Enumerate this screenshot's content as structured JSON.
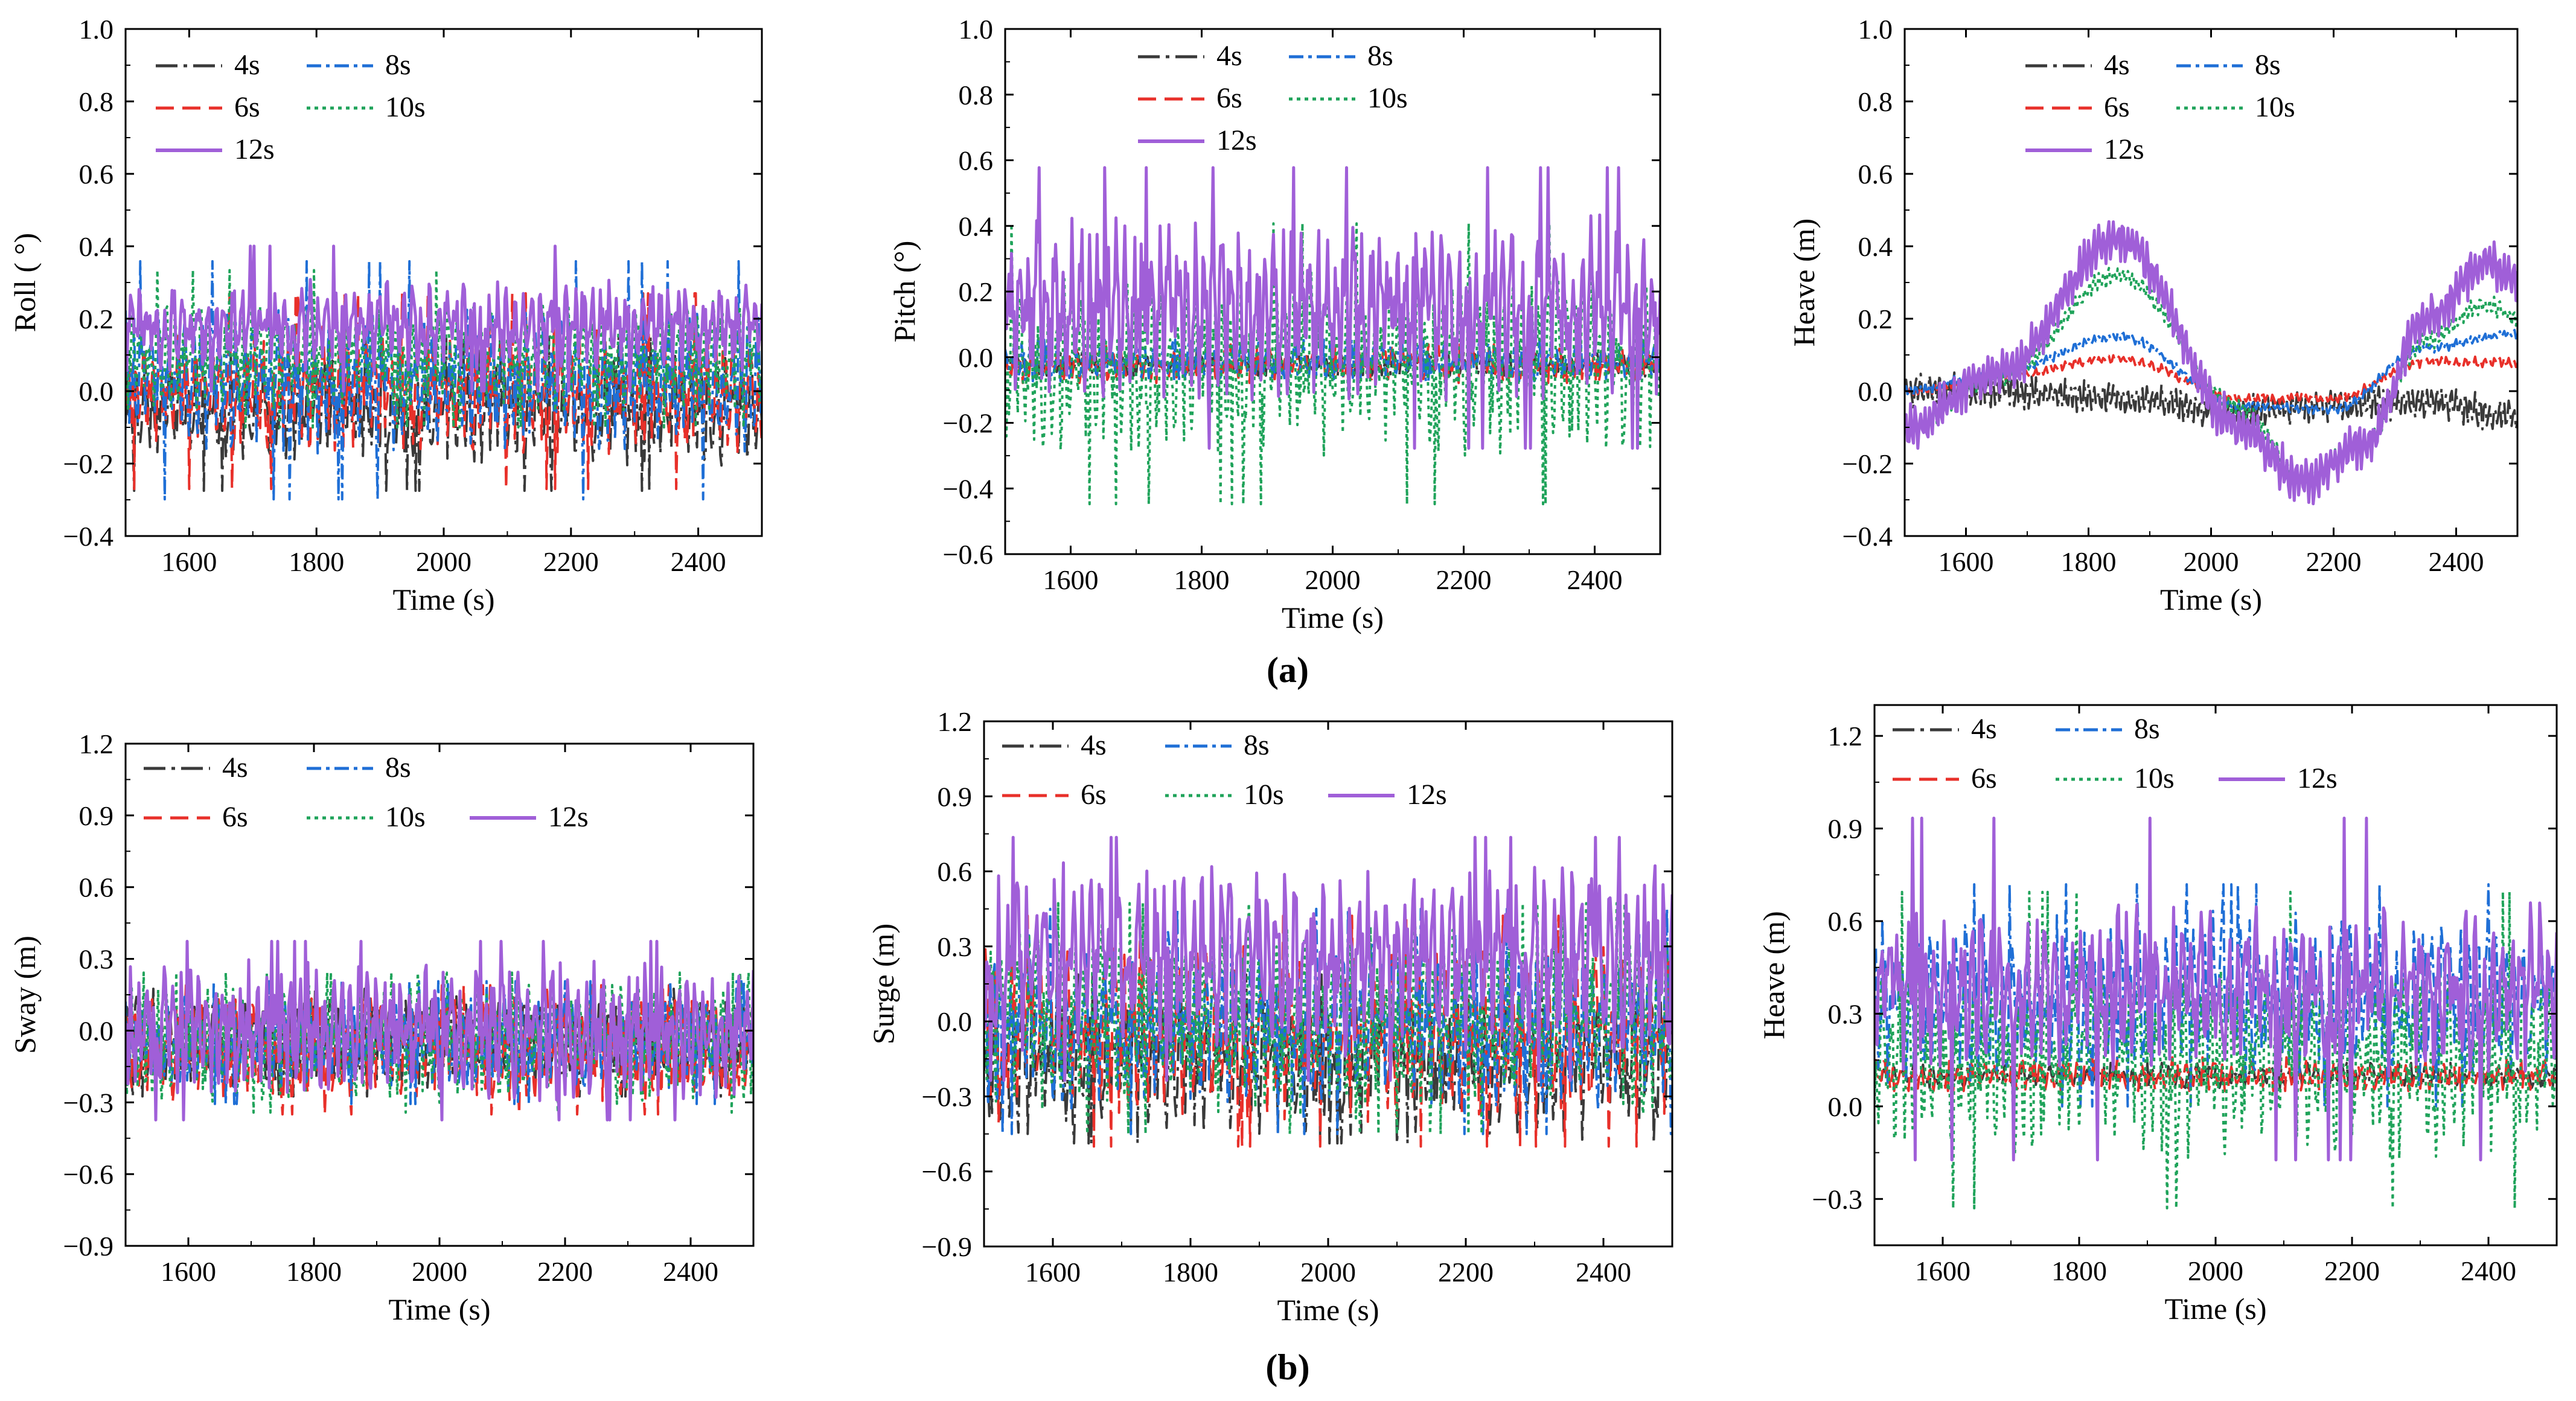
{
  "figure": {
    "caption_a": "(a)",
    "caption_b": "(b)"
  },
  "series_style": {
    "4s": {
      "label": "4s",
      "color": "#3a3a3a"
    },
    "6s": {
      "label": "6s",
      "color": "#e8302a"
    },
    "8s": {
      "label": "8s",
      "color": "#1f6fd6"
    },
    "10s": {
      "label": "10s",
      "color": "#1fa35a"
    },
    "12s": {
      "label": "12s",
      "color": "#a05fd8"
    }
  },
  "chart_data": [
    {
      "id": "a1",
      "type": "line",
      "title": "",
      "xlabel": "Time (s)",
      "ylabel": "Roll ( °)",
      "xlim": [
        1500,
        2500
      ],
      "ylim": [
        -0.4,
        1.0
      ],
      "xticks": [
        "1600",
        "1800",
        "2000",
        "2200",
        "2400"
      ],
      "xtick_values": [
        1600,
        1800,
        2000,
        2200,
        2400
      ],
      "yticks": [
        "−0.4",
        "−0.2",
        "0.0",
        "0.2",
        "0.4",
        "0.6",
        "0.8",
        "1.0"
      ],
      "ytick_values": [
        -0.4,
        -0.2,
        0.0,
        0.2,
        0.4,
        0.6,
        0.8,
        1.0
      ],
      "legend": {
        "position": "top-left",
        "rows": [
          [
            "4s",
            "8s"
          ],
          [
            "6s",
            "10s"
          ],
          [
            "12s"
          ]
        ]
      },
      "series": [
        {
          "name": "4s",
          "mean": -0.05,
          "amp": 0.12,
          "approx_range": [
            -0.35,
            0.15
          ]
        },
        {
          "name": "6s",
          "mean": 0.0,
          "amp": 0.14,
          "approx_range": [
            -0.3,
            0.3
          ]
        },
        {
          "name": "8s",
          "mean": 0.03,
          "amp": 0.16,
          "approx_range": [
            -0.35,
            0.38
          ]
        },
        {
          "name": "10s",
          "mean": 0.1,
          "amp": 0.12,
          "approx_range": [
            -0.1,
            0.42
          ]
        },
        {
          "name": "12s",
          "mean": 0.18,
          "amp": 0.1,
          "approx_range": [
            0.0,
            0.49
          ]
        }
      ]
    },
    {
      "id": "a2",
      "type": "line",
      "title": "",
      "xlabel": "Time (s)",
      "ylabel": "Pitch (°)",
      "xlim": [
        1500,
        2500
      ],
      "ylim": [
        -0.6,
        1.0
      ],
      "xticks": [
        "1600",
        "1800",
        "2000",
        "2200",
        "2400"
      ],
      "xtick_values": [
        1600,
        1800,
        2000,
        2200,
        2400
      ],
      "yticks": [
        "−0.6",
        "−0.4",
        "−0.2",
        "0.0",
        "0.2",
        "0.4",
        "0.6",
        "0.8",
        "1.0"
      ],
      "ytick_values": [
        -0.6,
        -0.4,
        -0.2,
        0.0,
        0.2,
        0.4,
        0.6,
        0.8,
        1.0
      ],
      "legend": {
        "position": "top-center",
        "rows": [
          [
            "4s",
            "8s"
          ],
          [
            "6s",
            "10s"
          ],
          [
            "12s"
          ]
        ]
      },
      "series": [
        {
          "name": "4s",
          "mean": -0.02,
          "amp": 0.03,
          "approx_range": [
            -0.06,
            0.02
          ]
        },
        {
          "name": "6s",
          "mean": -0.02,
          "amp": 0.04,
          "approx_range": [
            -0.08,
            0.05
          ]
        },
        {
          "name": "8s",
          "mean": -0.01,
          "amp": 0.05,
          "approx_range": [
            -0.08,
            0.06
          ]
        },
        {
          "name": "10s",
          "mean": -0.02,
          "amp": 0.22,
          "approx_range": [
            -0.45,
            0.5
          ]
        },
        {
          "name": "12s",
          "mean": 0.15,
          "amp": 0.22,
          "approx_range": [
            -0.3,
            0.65
          ]
        }
      ]
    },
    {
      "id": "a3",
      "type": "line",
      "title": "",
      "xlabel": "Time (s)",
      "ylabel": "Heave (m)",
      "xlim": [
        1500,
        2500
      ],
      "ylim": [
        -0.4,
        1.0
      ],
      "xticks": [
        "1600",
        "1800",
        "2000",
        "2200",
        "2400"
      ],
      "xtick_values": [
        1600,
        1800,
        2000,
        2200,
        2400
      ],
      "yticks": [
        "−0.4",
        "−0.2",
        "0.0",
        "0.2",
        "0.4",
        "0.6",
        "0.8",
        "1.0"
      ],
      "ytick_values": [
        -0.4,
        -0.2,
        0.0,
        0.2,
        0.4,
        0.6,
        0.8,
        1.0
      ],
      "legend": {
        "position": "top-center",
        "rows": [
          [
            "4s",
            "8s"
          ],
          [
            "6s",
            "10s"
          ],
          [
            "12s"
          ]
        ]
      },
      "series": [
        {
          "name": "4s",
          "x": [
            1500,
            1650,
            1850,
            2050,
            2200,
            2350,
            2500
          ],
          "y": [
            0.0,
            0.0,
            -0.02,
            -0.06,
            -0.04,
            -0.03,
            -0.07
          ]
        },
        {
          "name": "6s",
          "x": [
            1500,
            1650,
            1850,
            2050,
            2200,
            2350,
            2500
          ],
          "y": [
            0.0,
            0.04,
            0.09,
            -0.02,
            -0.02,
            0.08,
            0.08
          ]
        },
        {
          "name": "8s",
          "x": [
            1500,
            1650,
            1850,
            2050,
            2200,
            2350,
            2500
          ],
          "y": [
            0.0,
            0.05,
            0.15,
            -0.04,
            -0.05,
            0.12,
            0.16
          ]
        },
        {
          "name": "10s",
          "x": [
            1500,
            1650,
            1850,
            2050,
            2150,
            2250,
            2350,
            2450,
            2500
          ],
          "y": [
            -0.1,
            0.03,
            0.32,
            -0.05,
            -0.24,
            -0.14,
            0.14,
            0.24,
            0.2
          ]
        },
        {
          "name": "12s",
          "x": [
            1500,
            1650,
            1850,
            2050,
            2150,
            2250,
            2350,
            2450,
            2500
          ],
          "y": [
            -0.1,
            0.05,
            0.42,
            -0.1,
            -0.25,
            -0.15,
            0.2,
            0.35,
            0.32
          ]
        }
      ]
    },
    {
      "id": "b1",
      "type": "line",
      "title": "",
      "xlabel": "Time (s)",
      "ylabel": "Sway (m)",
      "xlim": [
        1500,
        2500
      ],
      "ylim": [
        -0.9,
        1.2
      ],
      "xticks": [
        "1600",
        "1800",
        "2000",
        "2200",
        "2400"
      ],
      "xtick_values": [
        1600,
        1800,
        2000,
        2200,
        2400
      ],
      "yticks": [
        "−0.9",
        "−0.6",
        "−0.3",
        "0.0",
        "0.3",
        "0.6",
        "0.9",
        "1.2"
      ],
      "ytick_values": [
        -0.9,
        -0.6,
        -0.3,
        0.0,
        0.3,
        0.6,
        0.9,
        1.2
      ],
      "legend": {
        "position": "top-left",
        "rows": [
          [
            "4s",
            "8s"
          ],
          [
            "6s",
            "10s",
            "12s"
          ]
        ]
      },
      "series": [
        {
          "name": "4s",
          "mean": -0.05,
          "amp": 0.15,
          "approx_range": [
            -0.3,
            0.2
          ]
        },
        {
          "name": "6s",
          "mean": -0.08,
          "amp": 0.17,
          "approx_range": [
            -0.4,
            0.2
          ]
        },
        {
          "name": "8s",
          "mean": -0.05,
          "amp": 0.16,
          "approx_range": [
            -0.35,
            0.22
          ]
        },
        {
          "name": "10s",
          "mean": -0.05,
          "amp": 0.2,
          "approx_range": [
            -0.4,
            0.25
          ]
        },
        {
          "name": "12s",
          "mean": 0.0,
          "amp": 0.23,
          "approx_range": [
            -0.45,
            0.38
          ]
        }
      ]
    },
    {
      "id": "b2",
      "type": "line",
      "title": "",
      "xlabel": "Time (s)",
      "ylabel": "Surge (m)",
      "xlim": [
        1500,
        2500
      ],
      "ylim": [
        -0.9,
        1.2
      ],
      "xticks": [
        "1600",
        "1800",
        "2000",
        "2200",
        "2400"
      ],
      "xtick_values": [
        1600,
        1800,
        2000,
        2200,
        2400
      ],
      "yticks": [
        "−0.9",
        "−0.6",
        "−0.3",
        "0.0",
        "0.3",
        "0.6",
        "0.9",
        "1.2"
      ],
      "ytick_values": [
        -0.9,
        -0.6,
        -0.3,
        0.0,
        0.3,
        0.6,
        0.9,
        1.2
      ],
      "legend": {
        "position": "top-left",
        "rows": [
          [
            "4s",
            "8s"
          ],
          [
            "6s",
            "10s",
            "12s"
          ]
        ]
      },
      "series": [
        {
          "name": "4s",
          "mean": -0.15,
          "amp": 0.25,
          "approx_range": [
            -0.55,
            0.2
          ]
        },
        {
          "name": "6s",
          "mean": -0.05,
          "amp": 0.28,
          "approx_range": [
            -0.5,
            0.55
          ]
        },
        {
          "name": "8s",
          "mean": 0.0,
          "amp": 0.28,
          "approx_range": [
            -0.45,
            0.55
          ]
        },
        {
          "name": "10s",
          "mean": 0.0,
          "amp": 0.3,
          "approx_range": [
            -0.45,
            0.6
          ]
        },
        {
          "name": "12s",
          "mean": 0.25,
          "amp": 0.3,
          "approx_range": [
            -0.3,
            0.78
          ]
        }
      ]
    },
    {
      "id": "b3",
      "type": "line",
      "title": "",
      "xlabel": "Time (s)",
      "ylabel": "Heave (m)",
      "xlim": [
        1500,
        2500
      ],
      "ylim": [
        -0.45,
        1.3
      ],
      "xticks": [
        "1600",
        "1800",
        "2000",
        "2200",
        "2400"
      ],
      "xtick_values": [
        1600,
        1800,
        2000,
        2200,
        2400
      ],
      "yticks": [
        "−0.3",
        "0.0",
        "0.3",
        "0.6",
        "0.9",
        "1.2"
      ],
      "ytick_values": [
        -0.3,
        0.0,
        0.3,
        0.6,
        0.9,
        1.2
      ],
      "legend": {
        "position": "top-left",
        "rows": [
          [
            "4s",
            "8s"
          ],
          [
            "6s",
            "10s",
            "12s"
          ]
        ]
      },
      "series": [
        {
          "name": "4s",
          "mean": 0.1,
          "amp": 0.03,
          "approx_range": [
            0.06,
            0.15
          ]
        },
        {
          "name": "6s",
          "mean": 0.1,
          "amp": 0.04,
          "approx_range": [
            0.05,
            0.18
          ]
        },
        {
          "name": "8s",
          "mean": 0.35,
          "amp": 0.22,
          "approx_range": [
            0.0,
            0.82
          ]
        },
        {
          "name": "10s",
          "mean": 0.15,
          "amp": 0.25,
          "approx_range": [
            -0.33,
            0.88
          ]
        },
        {
          "name": "12s",
          "mean": 0.38,
          "amp": 0.22,
          "approx_range": [
            -0.25,
            0.98
          ]
        }
      ]
    }
  ]
}
